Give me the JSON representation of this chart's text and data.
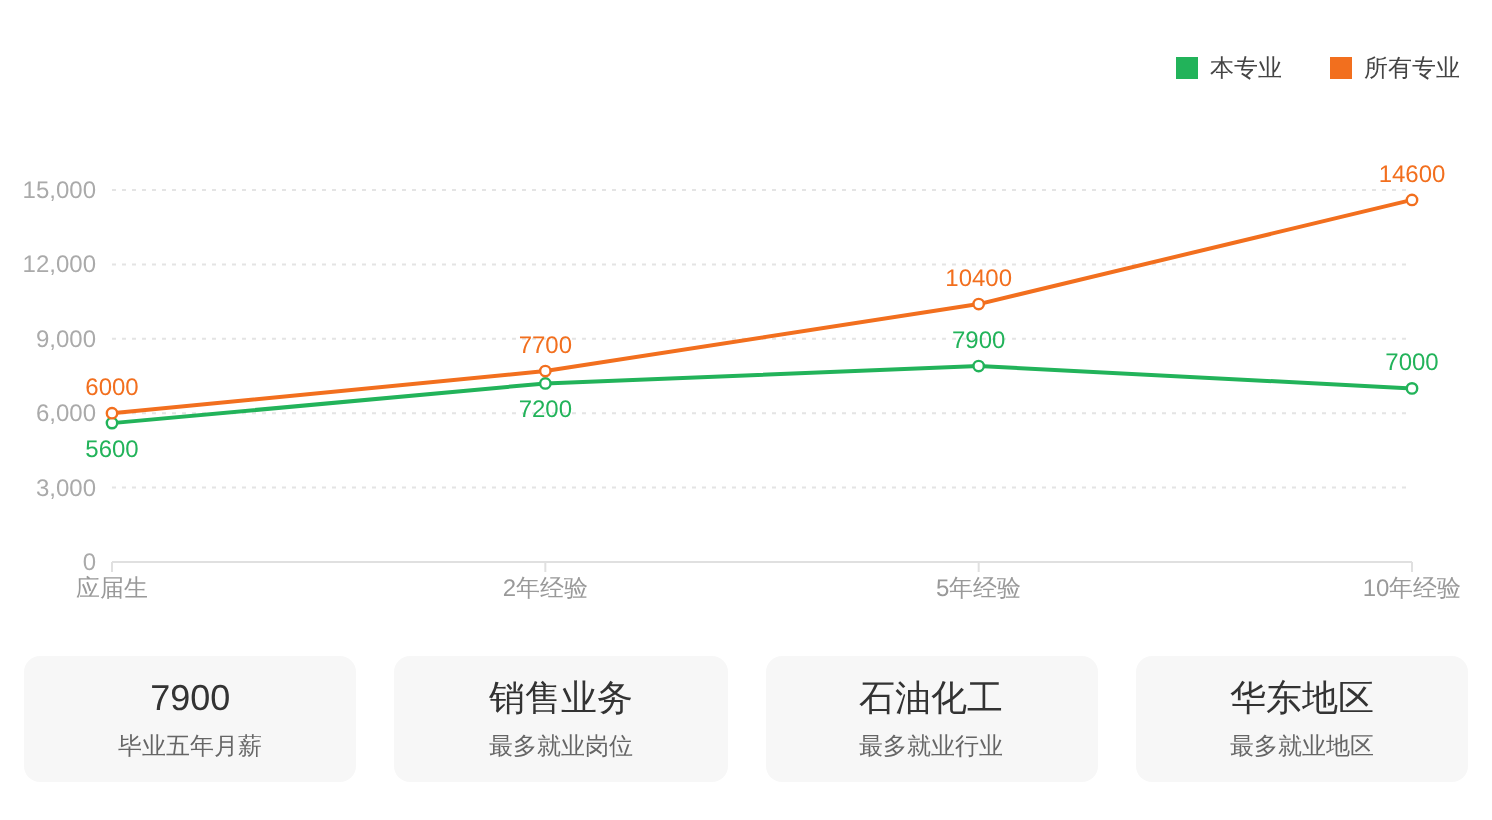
{
  "chart_data": [
    {
      "type": "line",
      "categories": [
        "应届生",
        "2年经验",
        "5年经验",
        "10年经验"
      ],
      "series": [
        {
          "name": "本专业",
          "color": "#22b35a",
          "values": [
            5600,
            7200,
            7900,
            7000
          ]
        },
        {
          "name": "所有专业",
          "color": "#f26f1e",
          "values": [
            6000,
            7700,
            10400,
            14600
          ]
        }
      ],
      "ylim": [
        0,
        15000
      ],
      "yticks": [
        0,
        {
          "value": 3000,
          "label": "3,000"
        },
        {
          "value": 6000,
          "label": "6,000"
        },
        {
          "value": 9000,
          "label": "9,000"
        },
        {
          "value": 12000,
          "label": "12,000"
        },
        {
          "value": 15000,
          "label": "15,000"
        }
      ],
      "grid": "y",
      "legend": "top right",
      "marker": "circle",
      "data_labels": true
    },
    {
      "type": "other",
      "annotations": [
        "7900",
        "毕业五年月薪",
        "销售业务",
        "最多就业岗位",
        "石油化工",
        "最多就业行业",
        "华东地区",
        "最多就业地区"
      ]
    }
  ]
}
